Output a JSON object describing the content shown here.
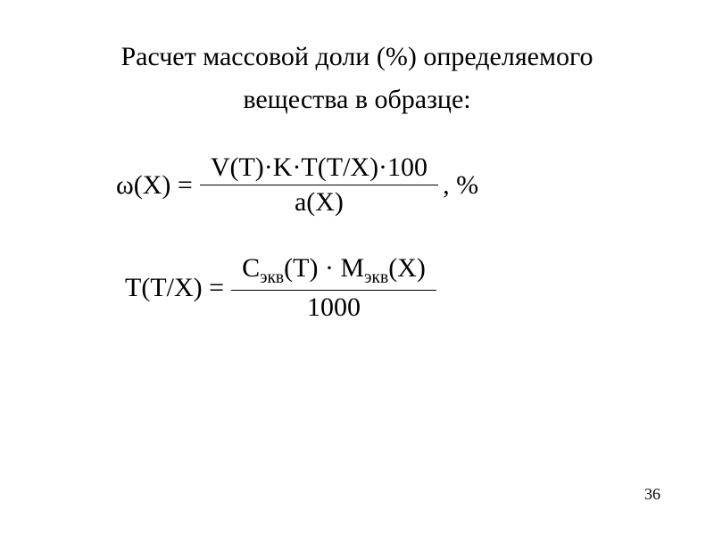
{
  "title_line1": "Расчет массовой доли (%)  определяемого",
  "title_line2": "вещества в образце:",
  "formula1": {
    "lhs": "ω(X) =",
    "numerator": "V(T)·K·T(T/X)·100",
    "denominator": "a(X)",
    "suffix": ", %"
  },
  "formula2": {
    "lhs": "T(T/X) =",
    "num_prefix": "C",
    "num_sub1": "экв",
    "num_mid": "(T) · M",
    "num_sub2": "экв",
    "num_suffix": "(X)",
    "denominator": "1000"
  },
  "page_number": "36",
  "style": {
    "background_color": "#ffffff",
    "text_color": "#000000",
    "title_fontsize": 30,
    "formula_fontsize": 30,
    "pagenum_fontsize": 18,
    "font_family": "Times New Roman",
    "fraction_line_width": 1.5
  }
}
